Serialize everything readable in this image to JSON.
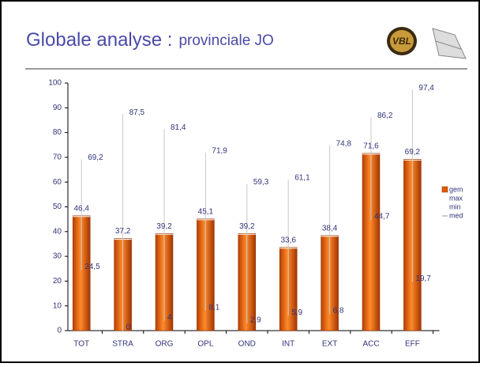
{
  "title": "Globale analyse :",
  "subtitle": "provinciale JO",
  "chart_data": {
    "type": "bar",
    "categories": [
      "TOT",
      "STRA",
      "ORG",
      "OPL",
      "OND",
      "INT",
      "EXT",
      "ACC",
      "EFF"
    ],
    "series": [
      {
        "name": "gem",
        "color": "#e35c06",
        "values": [
          46.4,
          37.2,
          39.2,
          45.1,
          39.2,
          33.6,
          38.4,
          71.6,
          69.2
        ],
        "value_labels": [
          "46,4",
          "37,2",
          "39,2",
          "45,1",
          "39,2",
          "33,6",
          "38,4",
          "71,6",
          "69,2"
        ]
      },
      {
        "name": "max",
        "color": "#c8c8c8",
        "values": [
          69.2,
          87.5,
          81.4,
          71.9,
          59.3,
          61.1,
          74.8,
          86.2,
          97.4
        ],
        "value_labels": [
          "69,2",
          "87,5",
          "81,4",
          "71,9",
          "59,3",
          "61,1",
          "74,8",
          "86,2",
          "97,4"
        ]
      },
      {
        "name": "min",
        "color": "#c8c8c8",
        "values": [
          24.5,
          0,
          4,
          8.1,
          2.9,
          5.9,
          6.8,
          44.7,
          19.7
        ],
        "value_labels": [
          "24,5",
          "0",
          "4",
          "8,1",
          "2,9",
          "5,9",
          "6,8",
          "44,7",
          "19,7"
        ]
      },
      {
        "name": "med",
        "color": "#999999",
        "values": [
          null,
          null,
          null,
          null,
          null,
          null,
          null,
          null,
          null
        ]
      }
    ],
    "ylim": [
      0,
      100
    ],
    "yticks": [
      0,
      10,
      20,
      30,
      40,
      50,
      60,
      70,
      80,
      90,
      100
    ]
  }
}
